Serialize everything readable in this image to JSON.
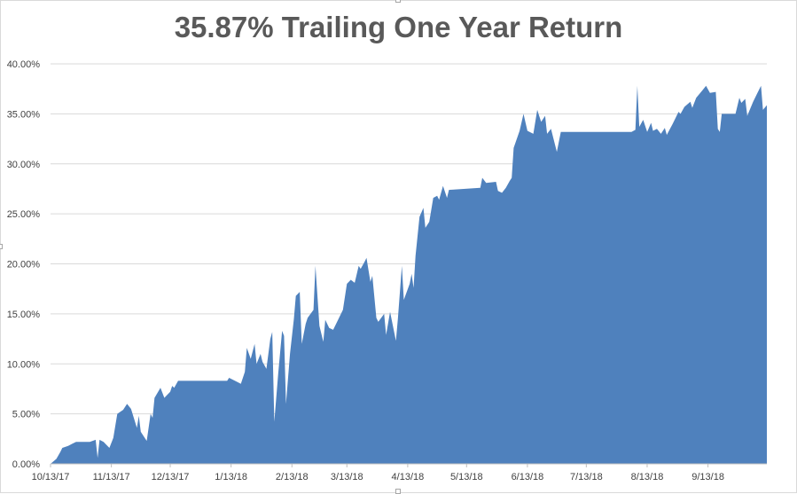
{
  "chart_data": {
    "type": "area",
    "title": "35.87% Trailing One Year Return",
    "xlabel": "",
    "ylabel": "",
    "x_ticks": [
      "10/13/17",
      "11/13/17",
      "12/13/17",
      "1/13/18",
      "2/13/18",
      "3/13/18",
      "4/13/18",
      "5/13/18",
      "6/13/18",
      "7/13/18",
      "8/13/18",
      "9/13/18"
    ],
    "y_ticks": [
      "0.00%",
      "5.00%",
      "10.00%",
      "15.00%",
      "20.00%",
      "25.00%",
      "30.00%",
      "35.00%",
      "40.00%"
    ],
    "ylim": [
      0,
      40
    ],
    "x_range": [
      "2017-10-13",
      "2018-10-13"
    ],
    "grid": "horizontal",
    "legend": "none",
    "series_color": "#4f81bd",
    "series": [
      {
        "points": [
          [
            "2017-10-13",
            0
          ],
          [
            "2017-10-16",
            0.5
          ],
          [
            "2017-10-18",
            1.2
          ],
          [
            "2017-10-19",
            1.6
          ],
          [
            "2017-10-22",
            1.8
          ],
          [
            "2017-10-24",
            2.0
          ],
          [
            "2017-10-26",
            2.2
          ],
          [
            "2017-11-02",
            2.2
          ],
          [
            "2017-11-05",
            2.4
          ],
          [
            "2017-11-06",
            0.6
          ],
          [
            "2017-11-07",
            2.4
          ],
          [
            "2017-11-09",
            2.2
          ],
          [
            "2017-11-12",
            1.6
          ],
          [
            "2017-11-14",
            2.6
          ],
          [
            "2017-11-16",
            5.0
          ],
          [
            "2017-11-19",
            5.4
          ],
          [
            "2017-11-21",
            6.0
          ],
          [
            "2017-11-23",
            5.5
          ],
          [
            "2017-11-26",
            3.6
          ],
          [
            "2017-11-27",
            4.8
          ],
          [
            "2017-11-28",
            3.2
          ],
          [
            "2017-12-01",
            2.3
          ],
          [
            "2017-12-03",
            5.0
          ],
          [
            "2017-12-04",
            4.6
          ],
          [
            "2017-12-05",
            6.6
          ],
          [
            "2017-12-08",
            7.6
          ],
          [
            "2017-12-10",
            6.6
          ],
          [
            "2017-12-11",
            6.8
          ],
          [
            "2017-12-13",
            7.2
          ],
          [
            "2017-12-14",
            7.8
          ],
          [
            "2017-12-15",
            7.6
          ],
          [
            "2017-12-17",
            8.3
          ],
          [
            "2018-01-11",
            8.3
          ],
          [
            "2018-01-12",
            8.6
          ],
          [
            "2018-01-15",
            8.3
          ],
          [
            "2018-01-18",
            8.0
          ],
          [
            "2018-01-20",
            9.2
          ],
          [
            "2018-01-21",
            11.6
          ],
          [
            "2018-01-23",
            10.5
          ],
          [
            "2018-01-25",
            12.0
          ],
          [
            "2018-01-26",
            10.0
          ],
          [
            "2018-01-28",
            11.0
          ],
          [
            "2018-01-29",
            10.2
          ],
          [
            "2018-01-31",
            9.5
          ],
          [
            "2018-02-02",
            12.5
          ],
          [
            "2018-02-03",
            13.2
          ],
          [
            "2018-02-04",
            4.2
          ],
          [
            "2018-02-06",
            9.0
          ],
          [
            "2018-02-08",
            13.3
          ],
          [
            "2018-02-09",
            12.8
          ],
          [
            "2018-02-10",
            6.0
          ],
          [
            "2018-02-12",
            11.0
          ],
          [
            "2018-02-14",
            14.5
          ],
          [
            "2018-02-15",
            16.8
          ],
          [
            "2018-02-17",
            17.2
          ],
          [
            "2018-02-18",
            12.0
          ],
          [
            "2018-02-20",
            14.0
          ],
          [
            "2018-02-21",
            14.6
          ],
          [
            "2018-02-24",
            15.4
          ],
          [
            "2018-02-25",
            19.8
          ],
          [
            "2018-02-27",
            13.8
          ],
          [
            "2018-03-01",
            12.2
          ],
          [
            "2018-03-02",
            14.4
          ],
          [
            "2018-03-04",
            13.6
          ],
          [
            "2018-03-06",
            13.4
          ],
          [
            "2018-03-09",
            14.6
          ],
          [
            "2018-03-11",
            15.4
          ],
          [
            "2018-03-13",
            18.0
          ],
          [
            "2018-03-15",
            18.4
          ],
          [
            "2018-03-17",
            18.1
          ],
          [
            "2018-03-19",
            19.8
          ],
          [
            "2018-03-20",
            19.5
          ],
          [
            "2018-03-22",
            20.2
          ],
          [
            "2018-03-23",
            20.6
          ],
          [
            "2018-03-25",
            18.2
          ],
          [
            "2018-03-26",
            18.8
          ],
          [
            "2018-03-28",
            14.6
          ],
          [
            "2018-03-29",
            14.2
          ],
          [
            "2018-04-01",
            15.0
          ],
          [
            "2018-04-02",
            12.9
          ],
          [
            "2018-04-04",
            15.2
          ],
          [
            "2018-04-07",
            12.3
          ],
          [
            "2018-04-08",
            14.5
          ],
          [
            "2018-04-10",
            19.8
          ],
          [
            "2018-04-11",
            16.4
          ],
          [
            "2018-04-14",
            18.0
          ],
          [
            "2018-04-15",
            19.0
          ],
          [
            "2018-04-16",
            17.6
          ],
          [
            "2018-04-17",
            20.8
          ],
          [
            "2018-04-19",
            24.7
          ],
          [
            "2018-04-21",
            25.6
          ],
          [
            "2018-04-22",
            23.6
          ],
          [
            "2018-04-24",
            24.2
          ],
          [
            "2018-04-26",
            26.6
          ],
          [
            "2018-04-28",
            26.8
          ],
          [
            "2018-04-29",
            26.4
          ],
          [
            "2018-05-01",
            27.8
          ],
          [
            "2018-05-03",
            26.6
          ],
          [
            "2018-05-04",
            27.4
          ],
          [
            "2018-05-20",
            27.6
          ],
          [
            "2018-05-21",
            28.6
          ],
          [
            "2018-05-23",
            28.1
          ],
          [
            "2018-05-28",
            28.2
          ],
          [
            "2018-05-29",
            27.3
          ],
          [
            "2018-05-31",
            27.1
          ],
          [
            "2018-06-02",
            27.6
          ],
          [
            "2018-06-04",
            28.3
          ],
          [
            "2018-06-05",
            28.6
          ],
          [
            "2018-06-06",
            31.6
          ],
          [
            "2018-06-09",
            33.3
          ],
          [
            "2018-06-11",
            35.0
          ],
          [
            "2018-06-13",
            33.3
          ],
          [
            "2018-06-16",
            33.0
          ],
          [
            "2018-06-18",
            35.4
          ],
          [
            "2018-06-20",
            34.2
          ],
          [
            "2018-06-22",
            34.8
          ],
          [
            "2018-06-23",
            33.0
          ],
          [
            "2018-06-25",
            33.5
          ],
          [
            "2018-06-28",
            31.2
          ],
          [
            "2018-06-30",
            33.2
          ],
          [
            "2018-08-05",
            33.2
          ],
          [
            "2018-08-07",
            33.4
          ],
          [
            "2018-08-08",
            37.8
          ],
          [
            "2018-08-09",
            33.7
          ],
          [
            "2018-08-11",
            34.4
          ],
          [
            "2018-08-13",
            33.2
          ],
          [
            "2018-08-15",
            34.1
          ],
          [
            "2018-08-16",
            33.3
          ],
          [
            "2018-08-18",
            33.5
          ],
          [
            "2018-08-20",
            33.0
          ],
          [
            "2018-08-22",
            33.6
          ],
          [
            "2018-08-23",
            32.9
          ],
          [
            "2018-08-26",
            34.0
          ],
          [
            "2018-08-29",
            35.2
          ],
          [
            "2018-08-30",
            35.0
          ],
          [
            "2018-09-01",
            35.7
          ],
          [
            "2018-09-04",
            36.2
          ],
          [
            "2018-09-05",
            35.6
          ],
          [
            "2018-09-07",
            36.6
          ],
          [
            "2018-09-10",
            37.3
          ],
          [
            "2018-09-12",
            37.8
          ],
          [
            "2018-09-14",
            37.1
          ],
          [
            "2018-09-17",
            37.2
          ],
          [
            "2018-09-18",
            33.5
          ],
          [
            "2018-09-19",
            33.2
          ],
          [
            "2018-09-20",
            35.0
          ],
          [
            "2018-09-27",
            35.0
          ],
          [
            "2018-09-29",
            36.6
          ],
          [
            "2018-09-30",
            36.1
          ],
          [
            "2018-10-02",
            36.5
          ],
          [
            "2018-10-03",
            34.8
          ],
          [
            "2018-10-06",
            36.2
          ],
          [
            "2018-10-08",
            37.0
          ],
          [
            "2018-10-10",
            37.8
          ],
          [
            "2018-10-11",
            35.4
          ],
          [
            "2018-10-13",
            35.87
          ]
        ]
      }
    ]
  }
}
